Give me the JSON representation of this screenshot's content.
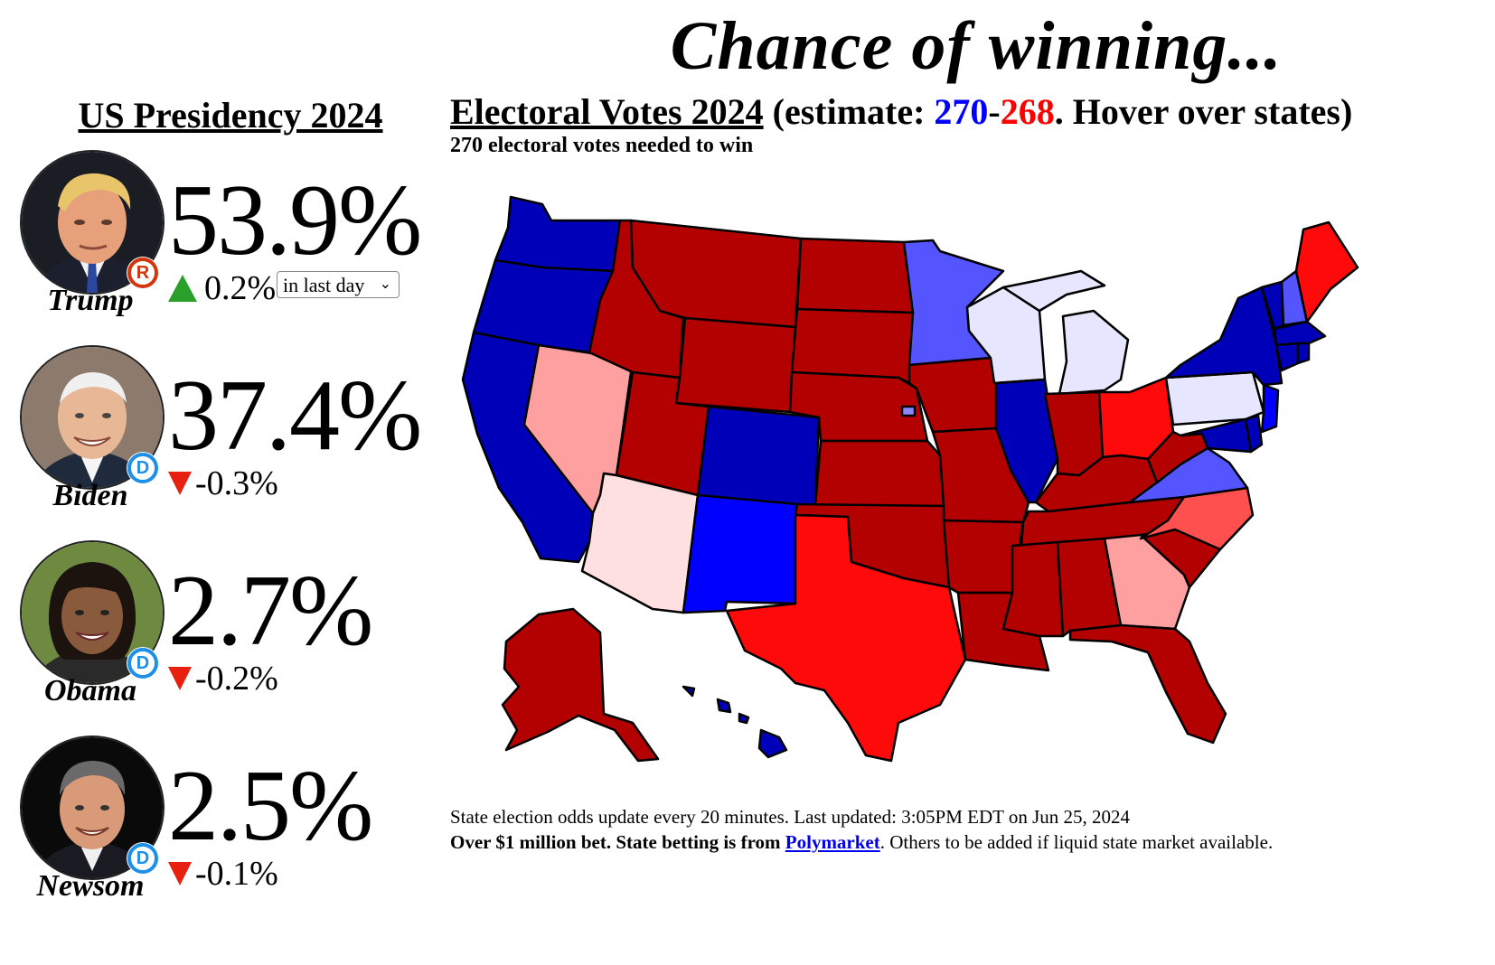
{
  "headline": "Chance of winning...",
  "left_title": "US Presidency 2024",
  "candidates": [
    {
      "name": "Trump",
      "party": "R",
      "pct": "53.9%",
      "delta": "0.2%",
      "direction": "up"
    },
    {
      "name": "Biden",
      "party": "D",
      "pct": "37.4%",
      "delta": "-0.3%",
      "direction": "down"
    },
    {
      "name": "Obama",
      "party": "D",
      "pct": "2.7%",
      "delta": "-0.2%",
      "direction": "down"
    },
    {
      "name": "Newsom",
      "party": "D",
      "pct": "2.5%",
      "delta": "-0.1%",
      "direction": "down"
    }
  ],
  "period_select": {
    "value": "in last day"
  },
  "electoral": {
    "title": "Electoral Votes 2024",
    "estimate_prefix": " (estimate: ",
    "dem": "270",
    "sep": "-",
    "rep": "268",
    "suffix": ". Hover over states)",
    "needed": "270 electoral votes needed to win"
  },
  "footer": {
    "line1": "State election odds update every 20 minutes. Last updated: 3:05PM EDT on Jun 25, 2024",
    "line2_bold": "Over $1 million bet. State betting is from ",
    "link": "Polymarket",
    "line2_rest": ". Others to be added if liquid state market available."
  },
  "colors": {
    "safe_dem": "#0000b8",
    "likely_dem": "#0000ff",
    "lean_dem": "#5555ff",
    "tilt_dem": "#e6e6ff",
    "safe_rep": "#b30000",
    "likely_rep": "#ff0a0a",
    "lean_rep": "#ff5050",
    "tilt_rep": "#ffa0a0",
    "toss_rep": "#ffe0e0"
  }
}
